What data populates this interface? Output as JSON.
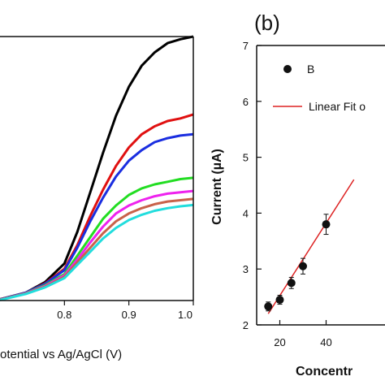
{
  "chart_data": [
    {
      "type": "line",
      "panel_label": "",
      "xlabel": "otential vs Ag/AgCl (V)",
      "ylabel": "",
      "xlim": [
        0.7,
        1.0
      ],
      "ylim": [
        0,
        1
      ],
      "x_ticks": [
        0.8,
        0.9,
        1.0
      ],
      "x_tick_labels": [
        "0.8",
        "0.9",
        "1.0"
      ],
      "series": [
        {
          "color": "#000000",
          "x": [
            0.7,
            0.74,
            0.77,
            0.8,
            0.82,
            0.84,
            0.86,
            0.88,
            0.9,
            0.92,
            0.94,
            0.96,
            0.98,
            1.0
          ],
          "y": [
            0.005,
            0.03,
            0.07,
            0.14,
            0.26,
            0.41,
            0.56,
            0.7,
            0.81,
            0.89,
            0.94,
            0.975,
            0.99,
            1.0
          ]
        },
        {
          "color": "#e01010",
          "x": [
            0.7,
            0.74,
            0.77,
            0.8,
            0.82,
            0.84,
            0.86,
            0.88,
            0.9,
            0.92,
            0.94,
            0.96,
            0.98,
            1.0
          ],
          "y": [
            0.004,
            0.03,
            0.065,
            0.12,
            0.21,
            0.32,
            0.42,
            0.51,
            0.58,
            0.63,
            0.66,
            0.68,
            0.69,
            0.705
          ]
        },
        {
          "color": "#1a2ee0",
          "x": [
            0.7,
            0.74,
            0.77,
            0.8,
            0.82,
            0.84,
            0.86,
            0.88,
            0.9,
            0.92,
            0.94,
            0.96,
            0.98,
            1.0
          ],
          "y": [
            0.004,
            0.03,
            0.063,
            0.115,
            0.2,
            0.3,
            0.39,
            0.47,
            0.53,
            0.57,
            0.6,
            0.615,
            0.625,
            0.63
          ]
        },
        {
          "color": "#22dd22",
          "x": [
            0.7,
            0.74,
            0.77,
            0.8,
            0.82,
            0.84,
            0.86,
            0.88,
            0.9,
            0.92,
            0.94,
            0.96,
            0.98,
            1.0
          ],
          "y": [
            0.003,
            0.028,
            0.058,
            0.1,
            0.17,
            0.24,
            0.31,
            0.36,
            0.4,
            0.425,
            0.44,
            0.45,
            0.46,
            0.465
          ]
        },
        {
          "color": "#ee22ee",
          "x": [
            0.7,
            0.74,
            0.77,
            0.8,
            0.82,
            0.84,
            0.86,
            0.88,
            0.9,
            0.92,
            0.94,
            0.96,
            0.98,
            1.0
          ],
          "y": [
            0.003,
            0.027,
            0.055,
            0.095,
            0.155,
            0.22,
            0.28,
            0.33,
            0.36,
            0.38,
            0.395,
            0.405,
            0.41,
            0.415
          ]
        },
        {
          "color": "#c8624a",
          "x": [
            0.7,
            0.74,
            0.77,
            0.8,
            0.82,
            0.84,
            0.86,
            0.88,
            0.9,
            0.92,
            0.94,
            0.96,
            0.98,
            1.0
          ],
          "y": [
            0.003,
            0.026,
            0.052,
            0.09,
            0.145,
            0.2,
            0.255,
            0.3,
            0.33,
            0.35,
            0.365,
            0.375,
            0.38,
            0.385
          ]
        },
        {
          "color": "#22dddd",
          "x": [
            0.7,
            0.74,
            0.77,
            0.8,
            0.82,
            0.84,
            0.86,
            0.88,
            0.9,
            0.92,
            0.94,
            0.96,
            0.98,
            1.0
          ],
          "y": [
            0.002,
            0.025,
            0.05,
            0.085,
            0.135,
            0.185,
            0.235,
            0.275,
            0.305,
            0.325,
            0.34,
            0.35,
            0.357,
            0.362
          ]
        }
      ]
    },
    {
      "type": "scatter",
      "panel_label": "(b)",
      "xlabel": "Concentr",
      "ylabel": "Current (µA)",
      "xlim": [
        10,
        60
      ],
      "ylim": [
        2,
        7
      ],
      "x_ticks": [
        20,
        40
      ],
      "x_tick_labels": [
        "20",
        "40"
      ],
      "y_ticks": [
        2,
        3,
        4,
        5,
        6,
        7
      ],
      "y_tick_labels": [
        "2",
        "3",
        "4",
        "5",
        "6",
        "7"
      ],
      "legend": [
        {
          "label": "B",
          "marker": "circle",
          "color": "#111111"
        },
        {
          "label": "Linear Fit o",
          "marker": "line",
          "color": "#dd2222"
        }
      ],
      "legend_position": "top-left",
      "points": {
        "x": [
          15,
          20,
          25,
          30,
          40
        ],
        "y": [
          2.33,
          2.45,
          2.75,
          3.05,
          3.8
        ],
        "err": [
          0.08,
          0.08,
          0.1,
          0.14,
          0.18
        ]
      },
      "fit": {
        "x": [
          15,
          52
        ],
        "y": [
          2.2,
          4.6
        ],
        "color": "#dd2222"
      }
    }
  ]
}
